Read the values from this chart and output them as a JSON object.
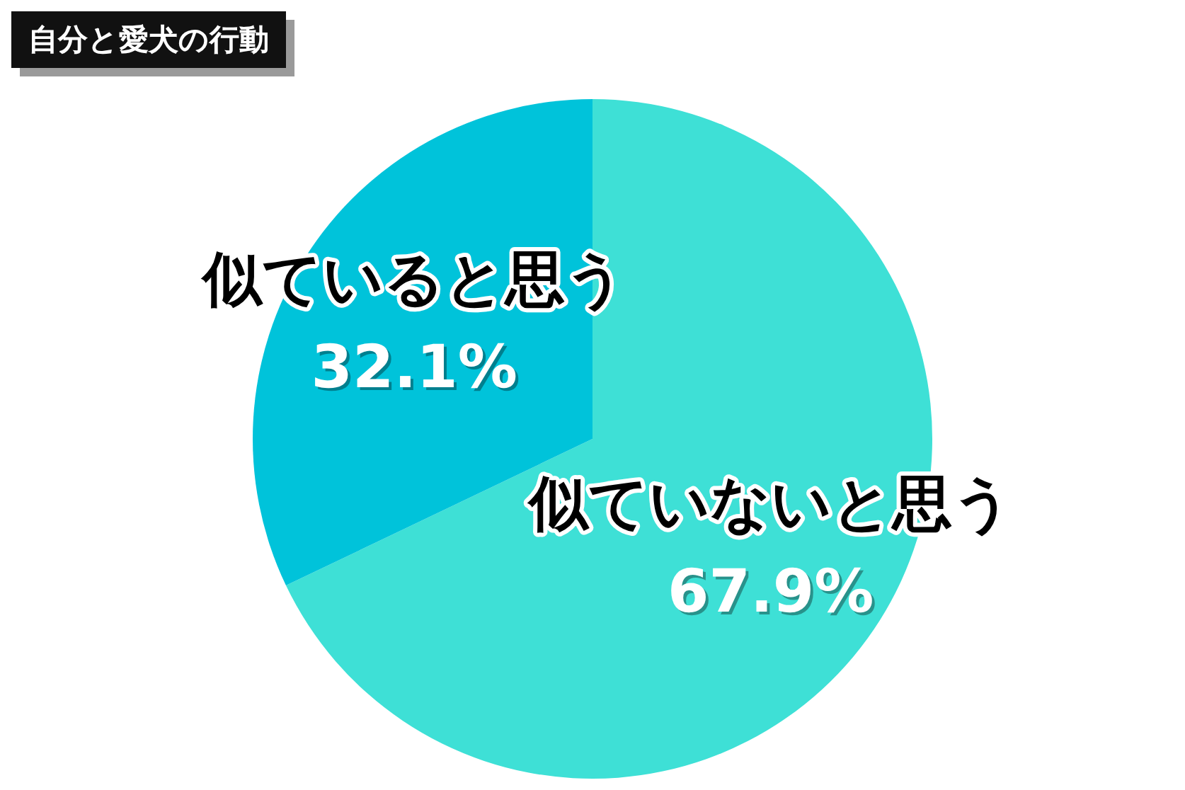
{
  "chart_data": {
    "type": "pie",
    "title": "自分と愛犬の行動",
    "categories": [
      "似ていないと思う",
      "似ていると思う"
    ],
    "values": [
      67.9,
      32.1
    ],
    "colors": [
      "#3ee0d6",
      "#00c3da"
    ],
    "value_labels": [
      "67.9%",
      "32.1%"
    ],
    "legend": false
  }
}
